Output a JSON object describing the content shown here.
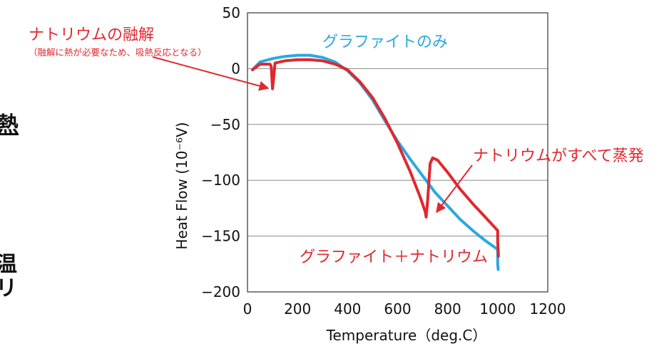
{
  "page_fragments": {
    "left_1": "熱",
    "left_2a": "温",
    "left_2b": "リ"
  },
  "chart_data": {
    "type": "line",
    "xlabel": "Temperature（deg.C）",
    "ylabel": "Heat Flow (10⁻⁶V)",
    "xlim": [
      0,
      1200
    ],
    "ylim": [
      -200,
      50
    ],
    "x_ticks": [
      "0",
      "200",
      "400",
      "600",
      "800",
      "1000",
      "1200"
    ],
    "y_ticks": [
      "50",
      "0",
      "−50",
      "−100",
      "−150",
      "−200"
    ],
    "grid": "horizontal",
    "series": [
      {
        "name": "グラファイトのみ",
        "color": "#2aa9e0",
        "x": [
          20,
          50,
          100,
          150,
          200,
          250,
          300,
          350,
          400,
          450,
          500,
          550,
          600,
          650,
          700,
          750,
          800,
          850,
          900,
          950,
          1000,
          1000,
          1002
        ],
        "y": [
          -1,
          6,
          9,
          11,
          12,
          12,
          10,
          6,
          -2,
          -13,
          -28,
          -47,
          -65,
          -81,
          -96,
          -111,
          -123,
          -135,
          -145,
          -154,
          -162,
          -175,
          -180
        ]
      },
      {
        "name": "グラファイト＋ナトリウム",
        "color": "#e0282e",
        "x": [
          20,
          50,
          90,
          95,
          100,
          105,
          110,
          150,
          200,
          250,
          300,
          350,
          400,
          450,
          500,
          550,
          600,
          650,
          690,
          710,
          714,
          720,
          730,
          740,
          760,
          800,
          850,
          900,
          950,
          1000,
          1000,
          1003
        ],
        "y": [
          -1,
          4,
          4,
          2,
          -18,
          -8,
          5,
          7,
          8,
          8,
          7,
          4,
          -1,
          -12,
          -26,
          -45,
          -67,
          -92,
          -115,
          -128,
          -133,
          -118,
          -85,
          -80,
          -82,
          -93,
          -108,
          -121,
          -133,
          -145,
          -155,
          -168
        ]
      }
    ],
    "annotations": [
      {
        "text": "ナトリウムの融解",
        "color": "#e0282e",
        "target": "melting dip near 100 deg.C"
      },
      {
        "text": "（融解に熱が必要なため、吸熱反応となる）",
        "color": "#e0282e",
        "target": ""
      },
      {
        "text": "ナトリウムがすべて蒸発",
        "color": "#e0282e",
        "target": "dip near 715 deg.C"
      },
      {
        "text": "グラファイトのみ",
        "color": "#2aa9e0",
        "target": "blue series label"
      },
      {
        "text": "グラファイト＋ナトリウム",
        "color": "#e0282e",
        "target": "red series label"
      }
    ]
  }
}
